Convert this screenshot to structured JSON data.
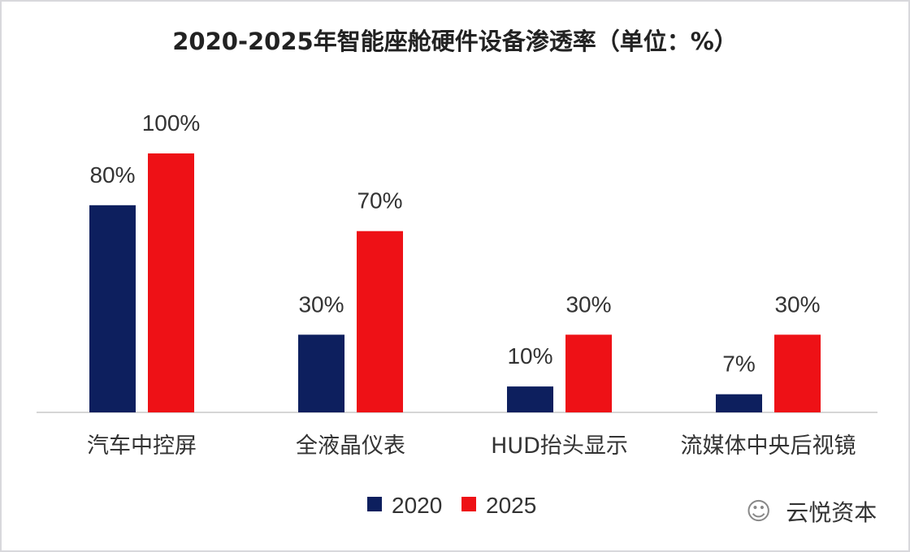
{
  "chart_data": {
    "type": "bar",
    "title": "2020-2025年智能座舱硬件设备渗透率（单位：%）",
    "categories": [
      "汽车中控屏",
      "全液晶仪表",
      "HUD抬头显示",
      "流媒体中央后视镜"
    ],
    "series": [
      {
        "name": "2020",
        "values": [
          80,
          30,
          10,
          7
        ],
        "color": "#0d1f5e"
      },
      {
        "name": "2025",
        "values": [
          100,
          70,
          30,
          30
        ],
        "color": "#ee1116"
      }
    ],
    "value_suffix": "%",
    "xlabel": "",
    "ylabel": "",
    "ylim": [
      0,
      100
    ],
    "grid": false,
    "legend": "bottom-center"
  },
  "watermark": {
    "text": "云悦资本",
    "icon": "wechat-icon"
  }
}
